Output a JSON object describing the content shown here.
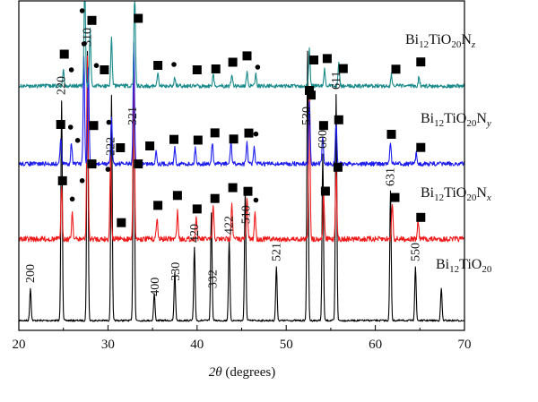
{
  "chart_data": {
    "type": "line",
    "xlabel_symbol": "2θ",
    "xlabel_rest": " (degrees)",
    "xlim": [
      20,
      70
    ],
    "xticks": [
      20,
      30,
      40,
      50,
      60,
      70
    ],
    "grid": false,
    "legend": "none",
    "series": [
      {
        "name": "Bi12TiO20",
        "label_parts": [
          [
            "Bi",
            ""
          ],
          [
            "12",
            "sub"
          ],
          [
            "TiO",
            ""
          ],
          [
            "20",
            "sub"
          ]
        ],
        "color": "#000000",
        "peaks": [
          {
            "x": 21.3,
            "h": 0.12
          },
          {
            "x": 24.8,
            "h": 0.82
          },
          {
            "x": 27.7,
            "h": 1.0
          },
          {
            "x": 30.4,
            "h": 0.84
          },
          {
            "x": 32.9,
            "h": 1.0
          },
          {
            "x": 35.2,
            "h": 0.1
          },
          {
            "x": 37.5,
            "h": 0.18
          },
          {
            "x": 39.7,
            "h": 0.27
          },
          {
            "x": 41.6,
            "h": 0.4
          },
          {
            "x": 43.6,
            "h": 0.3
          },
          {
            "x": 45.4,
            "h": 0.48
          },
          {
            "x": 48.9,
            "h": 0.2
          },
          {
            "x": 52.4,
            "h": 1.0
          },
          {
            "x": 54.1,
            "h": 0.62
          },
          {
            "x": 55.6,
            "h": 0.84
          },
          {
            "x": 61.7,
            "h": 0.48
          },
          {
            "x": 64.5,
            "h": 0.2
          },
          {
            "x": 67.4,
            "h": 0.12
          }
        ]
      },
      {
        "name": "Bi12TiO20Nx",
        "label_parts": [
          [
            "Bi",
            ""
          ],
          [
            "12",
            "sub"
          ],
          [
            "TiO",
            ""
          ],
          [
            "20",
            "sub"
          ],
          [
            "N",
            ""
          ],
          [
            "x",
            "sub-italic"
          ]
        ],
        "color": "#ee1c1c",
        "peaks": [
          {
            "x": 24.8,
            "h": 0.28
          },
          {
            "x": 26.0,
            "h": 0.15
          },
          {
            "x": 27.7,
            "h": 1.0
          },
          {
            "x": 30.3,
            "h": 0.45
          },
          {
            "x": 32.9,
            "h": 1.0
          },
          {
            "x": 35.5,
            "h": 0.12
          },
          {
            "x": 37.8,
            "h": 0.15
          },
          {
            "x": 39.9,
            "h": 0.12
          },
          {
            "x": 41.8,
            "h": 0.18
          },
          {
            "x": 43.9,
            "h": 0.2
          },
          {
            "x": 45.6,
            "h": 0.22
          },
          {
            "x": 46.5,
            "h": 0.15
          },
          {
            "x": 52.6,
            "h": 0.82
          },
          {
            "x": 54.2,
            "h": 0.25
          },
          {
            "x": 55.6,
            "h": 0.38
          },
          {
            "x": 61.9,
            "h": 0.2
          },
          {
            "x": 64.8,
            "h": 0.1
          }
        ]
      },
      {
        "name": "Bi12TiO20Ny",
        "label_parts": [
          [
            "Bi",
            ""
          ],
          [
            "12",
            "sub"
          ],
          [
            "TiO",
            ""
          ],
          [
            "20",
            "sub"
          ],
          [
            "N",
            ""
          ],
          [
            "y",
            "sub-italic"
          ]
        ],
        "color": "#1c1cee",
        "peaks": [
          {
            "x": 24.7,
            "h": 0.2
          },
          {
            "x": 25.9,
            "h": 0.16
          },
          {
            "x": 27.3,
            "h": 0.8
          },
          {
            "x": 27.8,
            "h": 0.72
          },
          {
            "x": 30.4,
            "h": 0.35
          },
          {
            "x": 32.9,
            "h": 0.9
          },
          {
            "x": 35.4,
            "h": 0.1
          },
          {
            "x": 37.5,
            "h": 0.12
          },
          {
            "x": 39.8,
            "h": 0.12
          },
          {
            "x": 41.7,
            "h": 0.16
          },
          {
            "x": 43.8,
            "h": 0.17
          },
          {
            "x": 45.6,
            "h": 0.16
          },
          {
            "x": 46.4,
            "h": 0.12
          },
          {
            "x": 52.6,
            "h": 0.48
          },
          {
            "x": 54.1,
            "h": 0.2
          },
          {
            "x": 55.6,
            "h": 0.3
          },
          {
            "x": 61.7,
            "h": 0.16
          },
          {
            "x": 64.6,
            "h": 0.08
          }
        ]
      },
      {
        "name": "Bi12TiO20Nz",
        "label_parts": [
          [
            "Bi",
            ""
          ],
          [
            "12",
            "sub"
          ],
          [
            "TiO",
            ""
          ],
          [
            "20",
            "sub"
          ],
          [
            "N",
            ""
          ],
          [
            "z",
            "sub-italic"
          ]
        ],
        "color": "#1a8a8a",
        "peaks": [
          {
            "x": 25.0,
            "h": 0.14
          },
          {
            "x": 27.4,
            "h": 0.95
          },
          {
            "x": 28.0,
            "h": 0.5
          },
          {
            "x": 30.4,
            "h": 0.42
          },
          {
            "x": 33.0,
            "h": 0.85
          },
          {
            "x": 35.6,
            "h": 0.1
          },
          {
            "x": 37.5,
            "h": 0.08
          },
          {
            "x": 41.8,
            "h": 0.1
          },
          {
            "x": 43.9,
            "h": 0.1
          },
          {
            "x": 45.6,
            "h": 0.12
          },
          {
            "x": 46.6,
            "h": 0.1
          },
          {
            "x": 52.6,
            "h": 0.32
          },
          {
            "x": 54.3,
            "h": 0.14
          },
          {
            "x": 55.9,
            "h": 0.2
          },
          {
            "x": 61.8,
            "h": 0.1
          },
          {
            "x": 64.9,
            "h": 0.08
          }
        ]
      }
    ],
    "peak_labels": [
      {
        "text": "200",
        "x": 21.3
      },
      {
        "text": "220",
        "x": 24.8
      },
      {
        "text": "310",
        "x": 27.7
      },
      {
        "text": "222",
        "x": 30.3
      },
      {
        "text": "321",
        "x": 32.8
      },
      {
        "text": "400",
        "x": 35.3
      },
      {
        "text": "330",
        "x": 37.6
      },
      {
        "text": "420",
        "x": 39.7
      },
      {
        "text": "332",
        "x": 41.8
      },
      {
        "text": "422",
        "x": 43.6
      },
      {
        "text": "510",
        "x": 45.5
      },
      {
        "text": "521",
        "x": 48.9
      },
      {
        "text": "530",
        "x": 52.3
      },
      {
        "text": "600",
        "x": 54.1
      },
      {
        "text": "611",
        "x": 55.6
      },
      {
        "text": "631",
        "x": 61.7
      },
      {
        "text": "550",
        "x": 64.5
      }
    ],
    "markers": [
      {
        "series": "Bi12TiO20Nx",
        "shape": "square",
        "x": 24.9
      },
      {
        "series": "Bi12TiO20Nx",
        "shape": "circle",
        "x": 26.0
      },
      {
        "series": "Bi12TiO20Nx",
        "shape": "circle",
        "x": 27.1
      },
      {
        "series": "Bi12TiO20Nx",
        "shape": "square",
        "x": 28.2
      },
      {
        "series": "Bi12TiO20Nx",
        "shape": "circle",
        "x": 30.0
      },
      {
        "series": "Bi12TiO20Nx",
        "shape": "square",
        "x": 31.5
      },
      {
        "series": "Bi12TiO20Nx",
        "shape": "square",
        "x": 33.4
      },
      {
        "series": "Bi12TiO20Nx",
        "shape": "square",
        "x": 35.6
      },
      {
        "series": "Bi12TiO20Nx",
        "shape": "square",
        "x": 37.8
      },
      {
        "series": "Bi12TiO20Nx",
        "shape": "square",
        "x": 40.0
      },
      {
        "series": "Bi12TiO20Nx",
        "shape": "square",
        "x": 42.0
      },
      {
        "series": "Bi12TiO20Nx",
        "shape": "square",
        "x": 44.0
      },
      {
        "series": "Bi12TiO20Nx",
        "shape": "square",
        "x": 45.7
      },
      {
        "series": "Bi12TiO20Nx",
        "shape": "circle",
        "x": 46.6
      },
      {
        "series": "Bi12TiO20Nx",
        "shape": "square",
        "x": 52.8
      },
      {
        "series": "Bi12TiO20Nx",
        "shape": "square",
        "x": 54.4
      },
      {
        "series": "Bi12TiO20Nx",
        "shape": "square",
        "x": 55.8
      },
      {
        "series": "Bi12TiO20Nx",
        "shape": "square",
        "x": 62.2
      },
      {
        "series": "Bi12TiO20Nx",
        "shape": "square",
        "x": 65.1
      },
      {
        "series": "Bi12TiO20Ny",
        "shape": "square",
        "x": 24.7
      },
      {
        "series": "Bi12TiO20Ny",
        "shape": "circle",
        "x": 25.8
      },
      {
        "series": "Bi12TiO20Ny",
        "shape": "circle",
        "x": 26.6
      },
      {
        "series": "Bi12TiO20Ny",
        "shape": "circle",
        "x": 27.3
      },
      {
        "series": "Bi12TiO20Ny",
        "shape": "square",
        "x": 28.4
      },
      {
        "series": "Bi12TiO20Ny",
        "shape": "circle",
        "x": 30.1
      },
      {
        "series": "Bi12TiO20Ny",
        "shape": "square",
        "x": 31.4
      },
      {
        "series": "Bi12TiO20Ny",
        "shape": "square",
        "x": 34.7
      },
      {
        "series": "Bi12TiO20Ny",
        "shape": "square",
        "x": 37.4
      },
      {
        "series": "Bi12TiO20Ny",
        "shape": "square",
        "x": 40.1
      },
      {
        "series": "Bi12TiO20Ny",
        "shape": "square",
        "x": 42.0
      },
      {
        "series": "Bi12TiO20Ny",
        "shape": "square",
        "x": 44.1
      },
      {
        "series": "Bi12TiO20Ny",
        "shape": "square",
        "x": 45.8
      },
      {
        "series": "Bi12TiO20Ny",
        "shape": "circle",
        "x": 46.6
      },
      {
        "series": "Bi12TiO20Ny",
        "shape": "square",
        "x": 52.6
      },
      {
        "series": "Bi12TiO20Ny",
        "shape": "square",
        "x": 54.2
      },
      {
        "series": "Bi12TiO20Ny",
        "shape": "square",
        "x": 55.9
      },
      {
        "series": "Bi12TiO20Ny",
        "shape": "square",
        "x": 61.8
      },
      {
        "series": "Bi12TiO20Ny",
        "shape": "square",
        "x": 65.1
      },
      {
        "series": "Bi12TiO20Nz",
        "shape": "square",
        "x": 25.1
      },
      {
        "series": "Bi12TiO20Nz",
        "shape": "circle",
        "x": 25.9
      },
      {
        "series": "Bi12TiO20Nz",
        "shape": "circle",
        "x": 27.1
      },
      {
        "series": "Bi12TiO20Nz",
        "shape": "square",
        "x": 28.2
      },
      {
        "series": "Bi12TiO20Nz",
        "shape": "square",
        "x": 29.6
      },
      {
        "series": "Bi12TiO20Nz",
        "shape": "circle",
        "x": 28.7
      },
      {
        "series": "Bi12TiO20Nz",
        "shape": "square",
        "x": 33.4
      },
      {
        "series": "Bi12TiO20Nz",
        "shape": "square",
        "x": 35.6
      },
      {
        "series": "Bi12TiO20Nz",
        "shape": "circle",
        "x": 37.4
      },
      {
        "series": "Bi12TiO20Nz",
        "shape": "square",
        "x": 40.0
      },
      {
        "series": "Bi12TiO20Nz",
        "shape": "square",
        "x": 42.1
      },
      {
        "series": "Bi12TiO20Nz",
        "shape": "square",
        "x": 44.0
      },
      {
        "series": "Bi12TiO20Nz",
        "shape": "square",
        "x": 45.6
      },
      {
        "series": "Bi12TiO20Nz",
        "shape": "circle",
        "x": 46.8
      },
      {
        "series": "Bi12TiO20Nz",
        "shape": "square",
        "x": 53.1
      },
      {
        "series": "Bi12TiO20Nz",
        "shape": "square",
        "x": 54.6
      },
      {
        "series": "Bi12TiO20Nz",
        "shape": "square",
        "x": 56.4
      },
      {
        "series": "Bi12TiO20Nz",
        "shape": "square",
        "x": 62.3
      },
      {
        "series": "Bi12TiO20Nz",
        "shape": "square",
        "x": 65.1
      }
    ]
  }
}
